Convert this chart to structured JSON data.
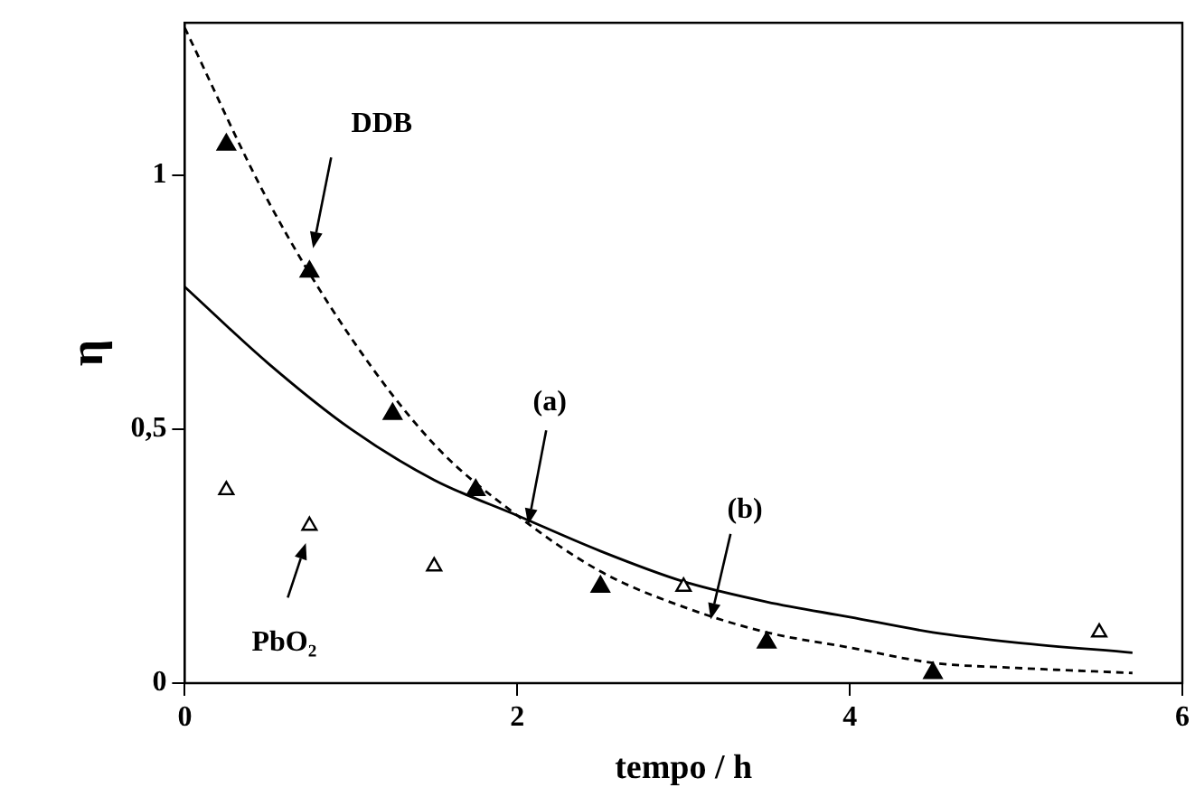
{
  "chart_data": {
    "type": "scatter",
    "xlabel": "tempo / h",
    "ylabel": "η",
    "xlim": [
      0,
      6
    ],
    "ylim": [
      0,
      1.3
    ],
    "xticks": [
      0,
      2,
      4,
      6
    ],
    "yticks": [
      0,
      {
        "value": 0.5,
        "label": "0,5"
      },
      1
    ],
    "grid": false,
    "legend": false,
    "series": [
      {
        "type": "scatter",
        "color": "#000000",
        "marker": "triangle",
        "x": [
          0.25,
          0.75,
          1.25,
          1.75,
          2.5,
          3.5,
          4.5
        ],
        "values": [
          1.06,
          0.81,
          0.53,
          0.38,
          0.19,
          0.08,
          0.02
        ]
      },
      {
        "type": "scatter",
        "color": "#000000",
        "marker": "triangle",
        "x": [
          0.25,
          0.75,
          1.5,
          3,
          5.5
        ],
        "values": [
          0.38,
          0.31,
          0.23,
          0.19,
          0.1
        ]
      },
      {
        "type": "line",
        "color": "#000000",
        "marker": "none",
        "line_style": "solid",
        "x": [
          0,
          0.5,
          1,
          1.5,
          2,
          2.5,
          3,
          3.5,
          4,
          4.5,
          5,
          5.7
        ],
        "values": [
          0.78,
          0.63,
          0.5,
          0.4,
          0.33,
          0.26,
          0.2,
          0.16,
          0.13,
          0.1,
          0.08,
          0.06
        ]
      },
      {
        "type": "line",
        "color": "#000000",
        "marker": "none",
        "line_style": "dashed",
        "x": [
          0,
          0.5,
          1,
          1.5,
          2,
          2.5,
          3,
          3.5,
          4,
          4.5,
          5,
          5.7
        ],
        "values": [
          1.29,
          0.95,
          0.68,
          0.47,
          0.33,
          0.22,
          0.15,
          0.1,
          0.07,
          0.04,
          0.03,
          0.02
        ]
      }
    ],
    "annotations": [
      "DDB",
      "PbO₂",
      "(a)",
      "(b)"
    ]
  }
}
